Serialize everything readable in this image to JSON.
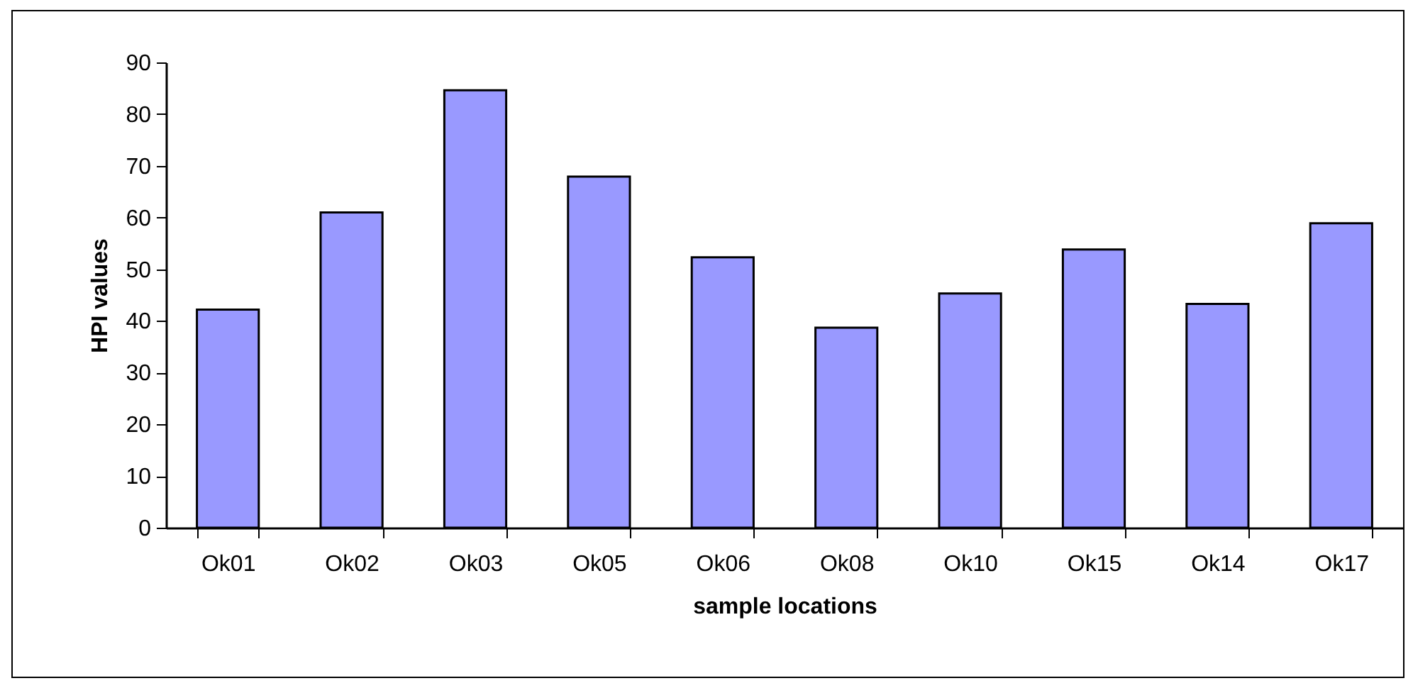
{
  "chart_data": {
    "type": "bar",
    "xlabel": "sample locations",
    "ylabel": "HPI values",
    "categories": [
      "Ok01",
      "Ok02",
      "Ok03",
      "Ok05",
      "Ok06",
      "Ok08",
      "Ok10",
      "Ok15",
      "Ok14",
      "Ok17"
    ],
    "values": [
      42.2,
      61.0,
      84.6,
      67.9,
      52.3,
      38.7,
      45.3,
      53.8,
      43.3,
      58.9
    ],
    "color": "#9999ff",
    "ylim": [
      0,
      90
    ],
    "yticks": [
      0,
      10,
      20,
      30,
      40,
      50,
      60,
      70,
      80,
      90
    ],
    "grid": false
  }
}
